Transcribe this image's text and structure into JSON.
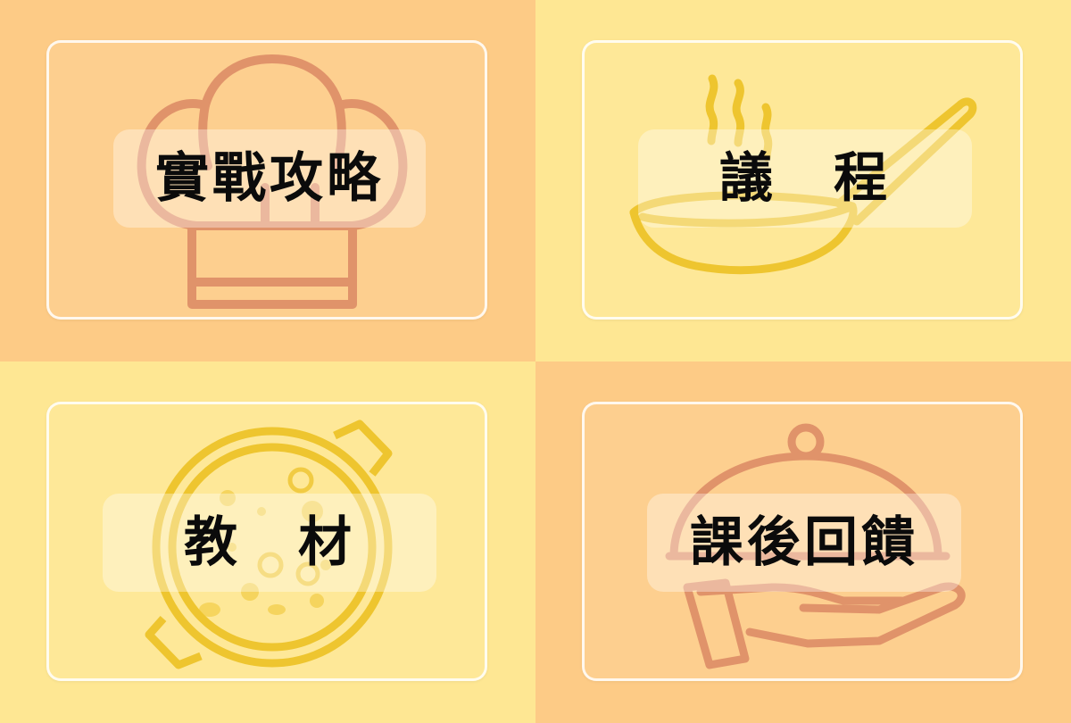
{
  "tiles": [
    {
      "label": "實戰攻略",
      "icon": "chef-hat-icon"
    },
    {
      "label": "議　程",
      "icon": "frying-pan-icon"
    },
    {
      "label": "教　材",
      "icon": "soup-pot-icon"
    },
    {
      "label": "課後回饋",
      "icon": "serving-cloche-hand-icon"
    }
  ],
  "colors": {
    "peach": "#fdcb86",
    "cream": "#fee793",
    "hat_stroke": "#e0936a",
    "pan_stroke": "#eec52f",
    "pot_stroke": "#eec52f",
    "cloche_stroke": "#e0936a"
  }
}
